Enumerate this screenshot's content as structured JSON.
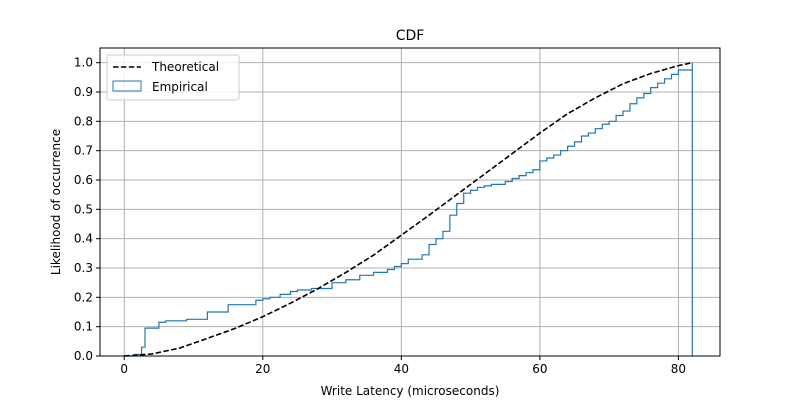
{
  "chart_data": {
    "type": "line",
    "title": "CDF",
    "xlabel": "Write Latency (microseconds)",
    "ylabel": "Likelihood of occurrence",
    "xlim": [
      -3.5,
      86
    ],
    "ylim": [
      0,
      1.05
    ],
    "xticks": [
      0,
      20,
      40,
      60,
      80
    ],
    "yticks": [
      0.0,
      0.1,
      0.2,
      0.3,
      0.4,
      0.5,
      0.6,
      0.7,
      0.8,
      0.9,
      1.0
    ],
    "xtick_labels": [
      "0",
      "20",
      "40",
      "60",
      "80"
    ],
    "ytick_labels": [
      "0.0",
      "0.1",
      "0.2",
      "0.3",
      "0.4",
      "0.5",
      "0.6",
      "0.7",
      "0.8",
      "0.9",
      "1.0"
    ],
    "grid": true,
    "legend_position": "top-left",
    "series": [
      {
        "name": "Theoretical",
        "style": "dashed",
        "color": "#000000",
        "x": [
          0,
          4,
          8,
          12,
          16,
          20,
          24,
          28,
          32,
          36,
          40,
          44,
          48,
          52,
          56,
          60,
          64,
          68,
          72,
          76,
          80,
          82
        ],
        "y": [
          0.0,
          0.007,
          0.027,
          0.06,
          0.094,
          0.134,
          0.18,
          0.23,
          0.285,
          0.344,
          0.412,
          0.48,
          0.55,
          0.62,
          0.69,
          0.76,
          0.826,
          0.88,
          0.928,
          0.963,
          0.99,
          1.0
        ]
      },
      {
        "name": "Empirical",
        "style": "step",
        "color": "#1f77b4",
        "x": [
          0,
          1.5,
          2.5,
          3,
          5,
          6,
          9,
          12,
          15,
          19,
          20,
          21,
          22.5,
          24,
          25,
          27,
          30,
          32,
          34,
          36,
          38,
          39,
          40,
          41,
          43,
          44,
          45,
          46,
          47,
          48,
          49,
          50,
          51,
          52,
          53,
          55,
          56,
          57,
          58,
          59,
          60,
          61,
          62,
          63,
          64,
          65,
          66,
          67,
          68,
          69,
          70,
          71,
          72,
          73,
          74,
          75,
          76,
          77,
          78,
          79,
          80,
          82
        ],
        "y": [
          0.0,
          0.005,
          0.03,
          0.095,
          0.115,
          0.12,
          0.125,
          0.15,
          0.175,
          0.19,
          0.195,
          0.2,
          0.21,
          0.22,
          0.225,
          0.23,
          0.25,
          0.26,
          0.275,
          0.285,
          0.295,
          0.305,
          0.315,
          0.33,
          0.345,
          0.38,
          0.4,
          0.425,
          0.48,
          0.52,
          0.555,
          0.565,
          0.575,
          0.58,
          0.585,
          0.595,
          0.605,
          0.615,
          0.625,
          0.635,
          0.665,
          0.675,
          0.685,
          0.7,
          0.715,
          0.73,
          0.75,
          0.76,
          0.775,
          0.79,
          0.8,
          0.82,
          0.835,
          0.86,
          0.88,
          0.895,
          0.915,
          0.93,
          0.945,
          0.96,
          0.975,
          1.0
        ]
      }
    ]
  }
}
